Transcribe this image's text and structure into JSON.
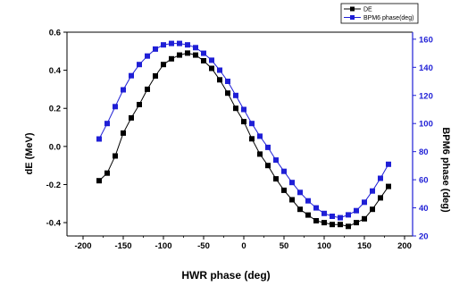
{
  "chart_data": {
    "type": "scatter",
    "title": "",
    "xlabel": "HWR phase (deg)",
    "ylabel": "dE (MeV)",
    "y2label": "BPM6 phase (deg)",
    "xlim": [
      -220,
      210
    ],
    "ylim": [
      -0.47,
      0.6
    ],
    "y2lim": [
      20,
      165
    ],
    "xticks": [
      -200,
      -150,
      -100,
      -50,
      0,
      50,
      100,
      150,
      200
    ],
    "yticks": [
      -0.4,
      -0.2,
      0.0,
      0.2,
      0.4,
      0.6
    ],
    "yticklabels": [
      "-0.4",
      "-0.2",
      "0.0",
      "0.2",
      "0.4",
      "0.6"
    ],
    "y2ticks": [
      20,
      40,
      60,
      80,
      100,
      120,
      140,
      160
    ],
    "grid": false,
    "legend_position": "top-right",
    "series": [
      {
        "name": "DE",
        "axis": "left",
        "color": "#000000",
        "marker": "square",
        "x": [
          -180,
          -170,
          -160,
          -150,
          -140,
          -130,
          -120,
          -110,
          -100,
          -90,
          -80,
          -70,
          -60,
          -50,
          -40,
          -30,
          -20,
          -10,
          0,
          10,
          20,
          30,
          40,
          50,
          60,
          70,
          80,
          90,
          100,
          110,
          120,
          130,
          140,
          150,
          160,
          170,
          180
        ],
        "y": [
          -0.18,
          -0.14,
          -0.05,
          0.07,
          0.15,
          0.22,
          0.3,
          0.37,
          0.43,
          0.46,
          0.48,
          0.49,
          0.48,
          0.45,
          0.41,
          0.35,
          0.28,
          0.2,
          0.13,
          0.04,
          -0.04,
          -0.1,
          -0.17,
          -0.23,
          -0.28,
          -0.33,
          -0.36,
          -0.39,
          -0.4,
          -0.41,
          -0.41,
          -0.42,
          -0.4,
          -0.38,
          -0.33,
          -0.27,
          -0.21
        ]
      },
      {
        "name": "BPM6 phase(deg)",
        "axis": "right",
        "color": "#1f1fd6",
        "marker": "square",
        "x": [
          -180,
          -170,
          -160,
          -150,
          -140,
          -130,
          -120,
          -110,
          -100,
          -90,
          -80,
          -70,
          -60,
          -50,
          -40,
          -30,
          -20,
          -10,
          0,
          10,
          20,
          30,
          40,
          50,
          60,
          70,
          80,
          90,
          100,
          110,
          120,
          130,
          140,
          150,
          160,
          170,
          180
        ],
        "y": [
          89,
          100,
          112,
          124,
          134,
          142,
          148,
          153,
          156,
          157,
          157,
          156,
          154,
          150,
          145,
          138,
          130,
          120,
          110,
          100,
          91,
          83,
          74,
          66,
          58,
          51,
          45,
          40,
          36,
          34,
          33,
          35,
          38,
          44,
          52,
          61,
          71
        ]
      }
    ]
  }
}
